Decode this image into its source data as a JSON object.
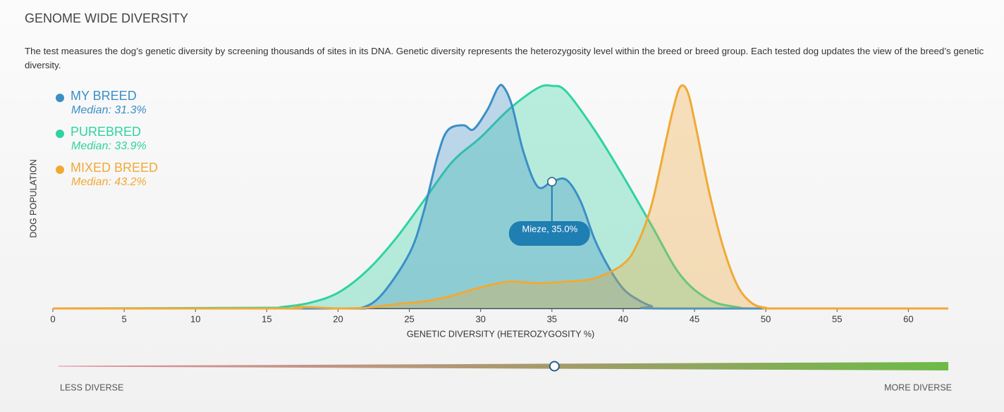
{
  "header": {
    "title": "GENOME WIDE DIVERSITY",
    "description": "The test measures the dog’s genetic diversity by screening thousands of sites in its DNA. Genetic diversity represents the heterozygosity level within the breed or breed group. Each tested dog updates the view of the breed’s genetic diversity."
  },
  "chart_data": {
    "type": "area",
    "x_label": "GENETIC DIVERSITY (HETEROZYGOSITY %)",
    "y_label": "DOG POPULATION",
    "xlim": [
      0,
      62.8
    ],
    "ylim": [
      0,
      100
    ],
    "xticks": [
      0,
      5,
      10,
      15,
      20,
      25,
      30,
      35,
      40,
      45,
      50,
      55,
      60
    ],
    "series": [
      {
        "name": "PUREBRED",
        "median_text": "Median: 33.9%",
        "color": "#2fd3a2",
        "x": [
          0,
          15,
          16,
          18,
          20,
          22,
          24,
          26,
          28,
          30,
          32,
          34,
          35,
          36,
          38,
          40,
          42,
          44,
          46,
          48,
          50,
          62.8
        ],
        "values": [
          0,
          0.3,
          0.6,
          2.5,
          7,
          16.7,
          30.8,
          48,
          65.4,
          76.4,
          89,
          98.4,
          99.4,
          96.9,
          79.6,
          59,
          37,
          15,
          4,
          0.6,
          0,
          0
        ]
      },
      {
        "name": "MY BREED",
        "median_text": "Median: 31.3%",
        "color": "#3b8fc7",
        "x": [
          0,
          20,
          21.5,
          23,
          25,
          26,
          27,
          27.7,
          28.8,
          29.5,
          30.5,
          31.2,
          31.6,
          32.2,
          33,
          34,
          35,
          36,
          37,
          38,
          39,
          40,
          41,
          42,
          43,
          62.8
        ],
        "values": [
          0,
          0,
          0,
          5.7,
          24.5,
          43,
          68.5,
          79.6,
          81.8,
          80,
          89,
          98.4,
          99,
          90.6,
          70,
          54.4,
          56.6,
          57.5,
          48,
          30.8,
          18.2,
          8.8,
          4,
          1,
          0,
          0
        ]
      },
      {
        "name": "MIXED BREED",
        "median_text": "Median: 43.2%",
        "color": "#f1a935",
        "x": [
          0,
          16,
          17,
          18,
          20,
          22,
          24,
          26,
          28,
          30,
          32,
          34,
          36,
          38,
          40,
          41,
          42,
          43,
          43.5,
          44,
          44.5,
          45,
          46,
          47,
          48,
          49,
          50,
          51,
          62.8
        ],
        "values": [
          0,
          0,
          0.6,
          0.6,
          0,
          0.3,
          1.9,
          3.1,
          5.7,
          9.4,
          12,
          11.3,
          12,
          13.5,
          19.8,
          29,
          46.5,
          75,
          89,
          99,
          97,
          84,
          52.8,
          27.7,
          10.4,
          2.5,
          0.3,
          0,
          0
        ]
      }
    ],
    "annotation": {
      "x": 35,
      "y": 56.6,
      "label": "Mieze, 35.0%"
    },
    "scale": {
      "left_label": "LESS DIVERSE",
      "right_label": "MORE DIVERSE"
    }
  }
}
